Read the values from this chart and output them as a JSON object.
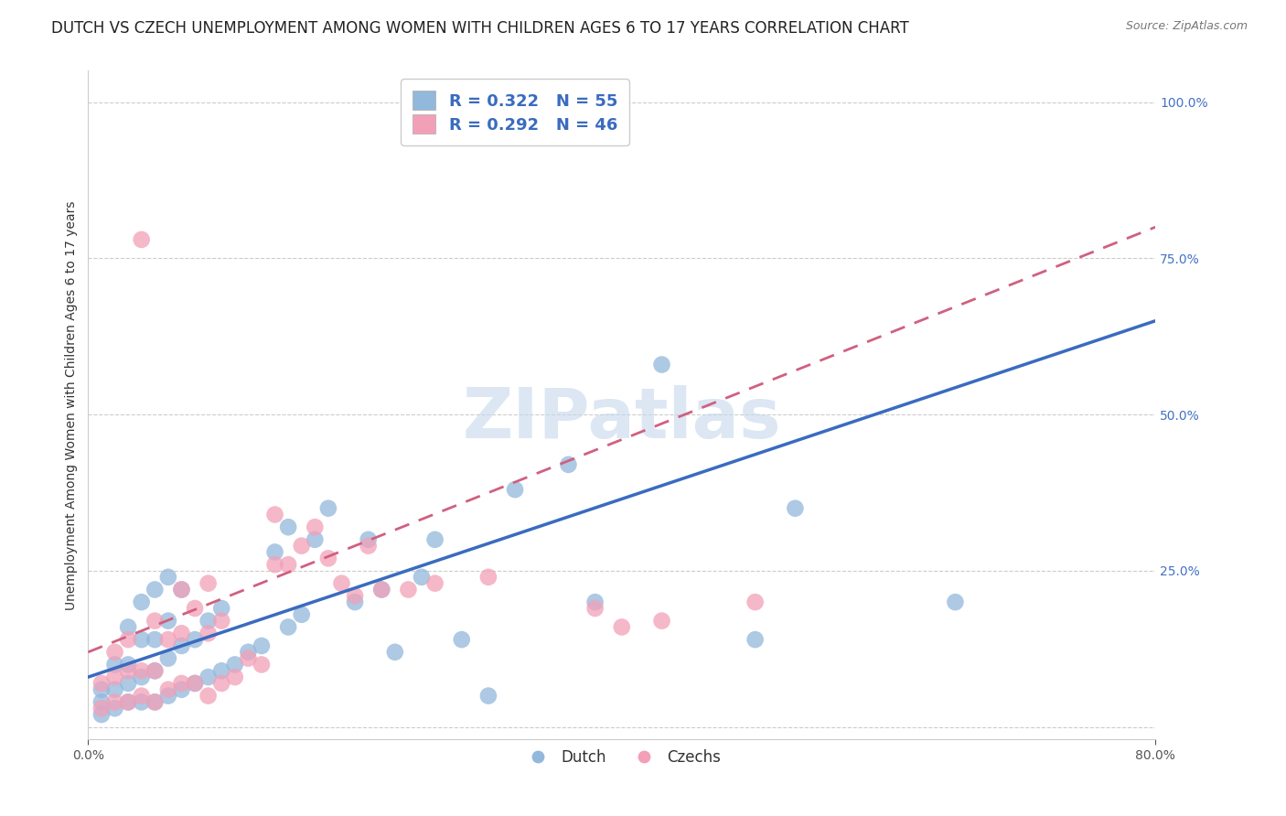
{
  "title": "DUTCH VS CZECH UNEMPLOYMENT AMONG WOMEN WITH CHILDREN AGES 6 TO 17 YEARS CORRELATION CHART",
  "source": "Source: ZipAtlas.com",
  "ylabel": "Unemployment Among Women with Children Ages 6 to 17 years",
  "xlim": [
    0.0,
    0.8
  ],
  "ylim": [
    -0.02,
    1.05
  ],
  "dutch_R": 0.322,
  "dutch_N": 55,
  "czech_R": 0.292,
  "czech_N": 46,
  "dutch_color": "#92b8dc",
  "czech_color": "#f2a0b8",
  "dutch_line_color": "#3a6bbf",
  "czech_line_color": "#d06080",
  "legend_r_color": "#3a6bbf",
  "watermark": "ZIPatlas",
  "dutch_scatter_x": [
    0.01,
    0.01,
    0.01,
    0.02,
    0.02,
    0.02,
    0.03,
    0.03,
    0.03,
    0.03,
    0.04,
    0.04,
    0.04,
    0.04,
    0.05,
    0.05,
    0.05,
    0.05,
    0.06,
    0.06,
    0.06,
    0.06,
    0.07,
    0.07,
    0.07,
    0.08,
    0.08,
    0.09,
    0.09,
    0.1,
    0.1,
    0.11,
    0.12,
    0.13,
    0.14,
    0.15,
    0.15,
    0.16,
    0.17,
    0.18,
    0.2,
    0.21,
    0.22,
    0.23,
    0.25,
    0.26,
    0.28,
    0.3,
    0.32,
    0.36,
    0.38,
    0.43,
    0.5,
    0.53,
    0.65
  ],
  "dutch_scatter_y": [
    0.02,
    0.04,
    0.06,
    0.03,
    0.06,
    0.1,
    0.04,
    0.07,
    0.1,
    0.16,
    0.04,
    0.08,
    0.14,
    0.2,
    0.04,
    0.09,
    0.14,
    0.22,
    0.05,
    0.11,
    0.17,
    0.24,
    0.06,
    0.13,
    0.22,
    0.07,
    0.14,
    0.08,
    0.17,
    0.09,
    0.19,
    0.1,
    0.12,
    0.13,
    0.28,
    0.16,
    0.32,
    0.18,
    0.3,
    0.35,
    0.2,
    0.3,
    0.22,
    0.12,
    0.24,
    0.3,
    0.14,
    0.05,
    0.38,
    0.42,
    0.2,
    0.58,
    0.14,
    0.35,
    0.2
  ],
  "czech_scatter_x": [
    0.01,
    0.01,
    0.02,
    0.02,
    0.02,
    0.03,
    0.03,
    0.03,
    0.04,
    0.04,
    0.04,
    0.05,
    0.05,
    0.05,
    0.06,
    0.06,
    0.07,
    0.07,
    0.07,
    0.08,
    0.08,
    0.09,
    0.09,
    0.09,
    0.1,
    0.1,
    0.11,
    0.12,
    0.13,
    0.14,
    0.14,
    0.15,
    0.16,
    0.17,
    0.18,
    0.19,
    0.2,
    0.21,
    0.22,
    0.24,
    0.26,
    0.3,
    0.38,
    0.4,
    0.43,
    0.5
  ],
  "czech_scatter_y": [
    0.03,
    0.07,
    0.04,
    0.08,
    0.12,
    0.04,
    0.09,
    0.14,
    0.05,
    0.09,
    0.78,
    0.04,
    0.09,
    0.17,
    0.06,
    0.14,
    0.07,
    0.15,
    0.22,
    0.07,
    0.19,
    0.05,
    0.15,
    0.23,
    0.07,
    0.17,
    0.08,
    0.11,
    0.1,
    0.26,
    0.34,
    0.26,
    0.29,
    0.32,
    0.27,
    0.23,
    0.21,
    0.29,
    0.22,
    0.22,
    0.23,
    0.24,
    0.19,
    0.16,
    0.17,
    0.2
  ],
  "ytick_positions": [
    0.0,
    0.25,
    0.5,
    0.75,
    1.0
  ],
  "ytick_labels": [
    "",
    "25.0%",
    "50.0%",
    "75.0%",
    "100.0%"
  ],
  "background_color": "#ffffff",
  "grid_color": "#cccccc",
  "title_fontsize": 12,
  "axis_label_fontsize": 10,
  "tick_fontsize": 10,
  "legend_fontsize": 13
}
